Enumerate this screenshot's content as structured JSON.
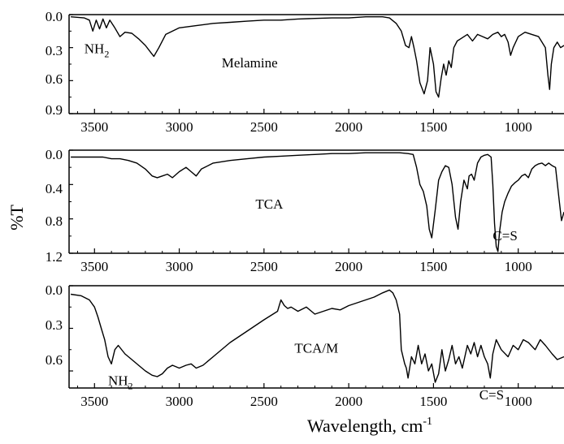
{
  "figure": {
    "ylabel": "%T",
    "xlabel_main": "Wavelength, cm",
    "xlabel_sup": "-1"
  },
  "chart_data": [
    {
      "type": "line",
      "title": "",
      "xlim": [
        3650,
        730
      ],
      "ylim": [
        0.0,
        0.9
      ],
      "yticks": [
        "0.0",
        "0.3",
        "0.6",
        "0.9"
      ],
      "xticks": [
        "3500",
        "3000",
        "2500",
        "2000",
        "1500",
        "1000"
      ],
      "annotations": [
        {
          "label": "Melamine",
          "x": 2750,
          "y": 0.48
        },
        {
          "label": "NH",
          "sub": "2",
          "x": 3560,
          "y": 0.35
        }
      ],
      "series": [
        {
          "name": "",
          "x": [
            3640,
            3560,
            3530,
            3510,
            3490,
            3470,
            3450,
            3430,
            3410,
            3380,
            3350,
            3320,
            3280,
            3240,
            3200,
            3170,
            3150,
            3120,
            3080,
            3000,
            2900,
            2800,
            2700,
            2600,
            2500,
            2400,
            2300,
            2200,
            2100,
            2000,
            1900,
            1800,
            1760,
            1720,
            1690,
            1665,
            1645,
            1630,
            1615,
            1600,
            1580,
            1555,
            1535,
            1520,
            1500,
            1485,
            1470,
            1455,
            1440,
            1425,
            1410,
            1395,
            1380,
            1360,
            1340,
            1300,
            1270,
            1240,
            1210,
            1180,
            1150,
            1120,
            1100,
            1080,
            1060,
            1045,
            1030,
            1000,
            960,
            920,
            880,
            860,
            840,
            825,
            815,
            805,
            790,
            770,
            750,
            730
          ],
          "y": [
            0.02,
            0.03,
            0.05,
            0.15,
            0.05,
            0.13,
            0.04,
            0.12,
            0.05,
            0.12,
            0.2,
            0.16,
            0.17,
            0.22,
            0.28,
            0.34,
            0.38,
            0.3,
            0.18,
            0.12,
            0.1,
            0.08,
            0.07,
            0.06,
            0.05,
            0.05,
            0.04,
            0.035,
            0.03,
            0.03,
            0.02,
            0.02,
            0.03,
            0.08,
            0.15,
            0.28,
            0.3,
            0.2,
            0.3,
            0.42,
            0.62,
            0.72,
            0.6,
            0.3,
            0.45,
            0.7,
            0.75,
            0.58,
            0.45,
            0.55,
            0.42,
            0.48,
            0.3,
            0.24,
            0.22,
            0.18,
            0.24,
            0.18,
            0.2,
            0.22,
            0.18,
            0.16,
            0.2,
            0.18,
            0.25,
            0.37,
            0.3,
            0.2,
            0.16,
            0.18,
            0.2,
            0.25,
            0.3,
            0.55,
            0.68,
            0.45,
            0.3,
            0.25,
            0.3,
            0.28
          ]
        }
      ]
    },
    {
      "type": "line",
      "title": "",
      "xlim": [
        3650,
        730
      ],
      "ylim": [
        0.0,
        1.2
      ],
      "yticks": [
        "0.0",
        "0.4",
        "0.8",
        "1.2"
      ],
      "xticks": [
        "3500",
        "3000",
        "2500",
        "2000",
        "1500",
        "1000"
      ],
      "annotations": [
        {
          "label": "TCA",
          "x": 2550,
          "y": 0.68
        },
        {
          "label": "C=S",
          "x": 1150,
          "y": 1.05
        }
      ],
      "series": [
        {
          "name": "",
          "x": [
            3640,
            3550,
            3450,
            3400,
            3350,
            3300,
            3250,
            3200,
            3160,
            3130,
            3100,
            3070,
            3040,
            3000,
            2960,
            2930,
            2900,
            2870,
            2800,
            2700,
            2600,
            2500,
            2400,
            2300,
            2200,
            2100,
            2000,
            1900,
            1800,
            1700,
            1650,
            1620,
            1600,
            1580,
            1560,
            1540,
            1525,
            1510,
            1490,
            1470,
            1450,
            1430,
            1410,
            1390,
            1370,
            1355,
            1340,
            1320,
            1300,
            1290,
            1275,
            1260,
            1240,
            1220,
            1200,
            1180,
            1160,
            1150,
            1140,
            1130,
            1120,
            1110,
            1095,
            1080,
            1060,
            1040,
            1020,
            1000,
            980,
            960,
            940,
            920,
            900,
            880,
            860,
            840,
            820,
            800,
            780,
            760,
            745,
            730
          ],
          "y": [
            0.08,
            0.08,
            0.08,
            0.1,
            0.1,
            0.12,
            0.15,
            0.22,
            0.3,
            0.32,
            0.3,
            0.28,
            0.32,
            0.25,
            0.2,
            0.25,
            0.3,
            0.22,
            0.15,
            0.12,
            0.1,
            0.08,
            0.07,
            0.06,
            0.05,
            0.04,
            0.04,
            0.03,
            0.03,
            0.03,
            0.04,
            0.05,
            0.2,
            0.4,
            0.48,
            0.65,
            0.92,
            1.02,
            0.7,
            0.35,
            0.25,
            0.18,
            0.2,
            0.4,
            0.78,
            0.92,
            0.6,
            0.35,
            0.45,
            0.3,
            0.28,
            0.35,
            0.15,
            0.08,
            0.06,
            0.05,
            0.08,
            0.4,
            0.85,
            1.12,
            1.18,
            0.95,
            0.72,
            0.6,
            0.5,
            0.42,
            0.38,
            0.35,
            0.3,
            0.28,
            0.32,
            0.22,
            0.18,
            0.16,
            0.15,
            0.18,
            0.15,
            0.18,
            0.2,
            0.55,
            0.82,
            0.72
          ]
        }
      ]
    },
    {
      "type": "line",
      "title": "",
      "xlim": [
        3650,
        730
      ],
      "ylim": [
        0.0,
        0.72
      ],
      "yticks": [
        "0.0",
        "0.3",
        "0.6"
      ],
      "xticks": [
        "3500",
        "3000",
        "2500",
        "2000",
        "1500",
        "1000"
      ],
      "annotations": [
        {
          "label": "TCA/M",
          "x": 2320,
          "y": 0.47
        },
        {
          "label": "NH",
          "sub": "2",
          "x": 3420,
          "y": 0.7
        },
        {
          "label": "C=S",
          "x": 1230,
          "y": 0.8
        }
      ],
      "series": [
        {
          "name": "",
          "x": [
            3640,
            3580,
            3530,
            3500,
            3480,
            3460,
            3440,
            3420,
            3400,
            3380,
            3360,
            3320,
            3280,
            3240,
            3200,
            3160,
            3130,
            3100,
            3070,
            3040,
            3000,
            2960,
            2930,
            2900,
            2860,
            2800,
            2700,
            2600,
            2500,
            2420,
            2400,
            2380,
            2360,
            2340,
            2300,
            2250,
            2200,
            2150,
            2100,
            2050,
            2000,
            1950,
            1900,
            1850,
            1800,
            1760,
            1740,
            1720,
            1700,
            1690,
            1670,
            1660,
            1650,
            1630,
            1610,
            1590,
            1570,
            1550,
            1530,
            1510,
            1490,
            1470,
            1450,
            1430,
            1410,
            1390,
            1370,
            1350,
            1330,
            1300,
            1280,
            1260,
            1240,
            1220,
            1200,
            1180,
            1165,
            1150,
            1130,
            1100,
            1060,
            1030,
            1000,
            970,
            940,
            900,
            870,
            840,
            800,
            770,
            730
          ],
          "y": [
            0.06,
            0.07,
            0.1,
            0.15,
            0.22,
            0.3,
            0.38,
            0.5,
            0.55,
            0.45,
            0.42,
            0.48,
            0.52,
            0.56,
            0.6,
            0.63,
            0.64,
            0.62,
            0.58,
            0.56,
            0.58,
            0.56,
            0.55,
            0.58,
            0.56,
            0.5,
            0.4,
            0.32,
            0.24,
            0.18,
            0.1,
            0.14,
            0.16,
            0.15,
            0.18,
            0.15,
            0.2,
            0.18,
            0.16,
            0.17,
            0.14,
            0.12,
            0.1,
            0.08,
            0.05,
            0.03,
            0.05,
            0.1,
            0.2,
            0.45,
            0.55,
            0.58,
            0.65,
            0.5,
            0.55,
            0.42,
            0.55,
            0.48,
            0.6,
            0.55,
            0.68,
            0.62,
            0.45,
            0.6,
            0.52,
            0.42,
            0.55,
            0.5,
            0.58,
            0.42,
            0.48,
            0.4,
            0.5,
            0.42,
            0.5,
            0.55,
            0.65,
            0.48,
            0.38,
            0.45,
            0.5,
            0.42,
            0.45,
            0.38,
            0.4,
            0.45,
            0.38,
            0.42,
            0.48,
            0.52,
            0.5
          ]
        }
      ]
    }
  ]
}
